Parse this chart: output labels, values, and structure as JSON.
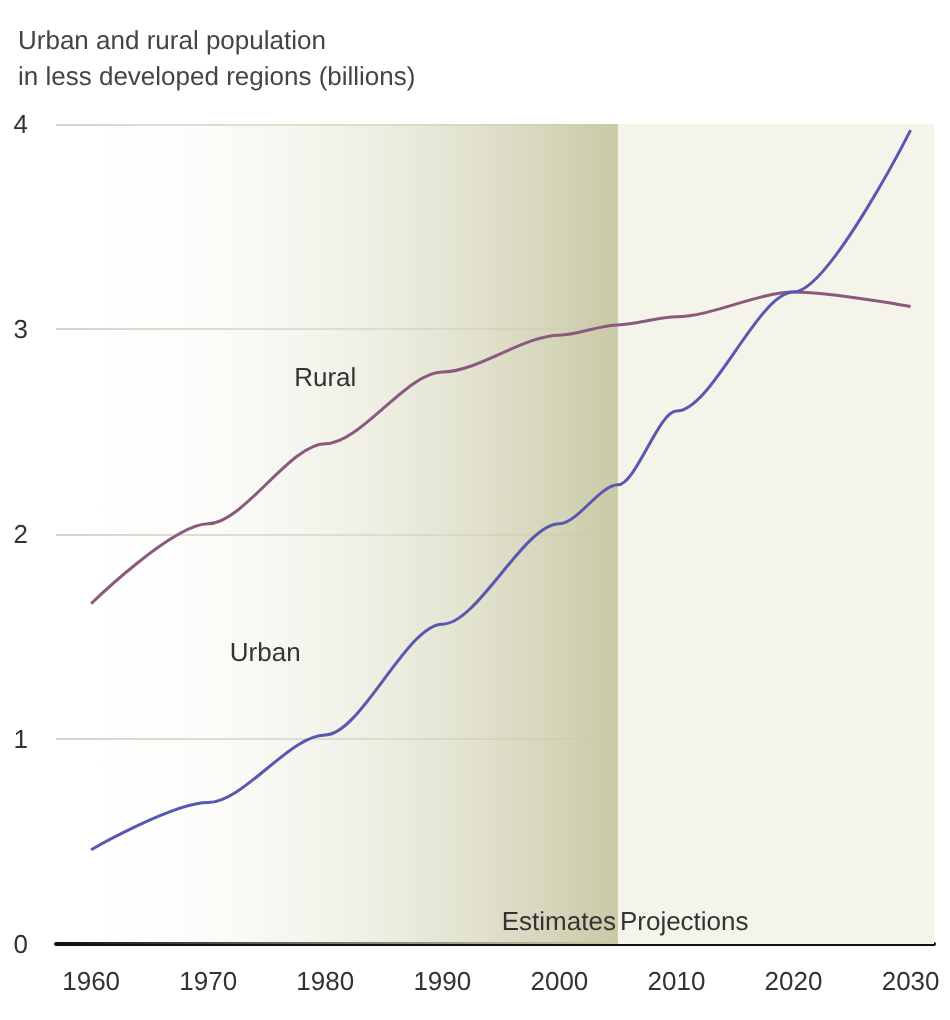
{
  "chart_data": {
    "type": "line",
    "title": "Urban and rural population\nin less developed regions (billions)",
    "x": [
      1960,
      1970,
      1980,
      1990,
      2000,
      2005,
      2010,
      2020,
      2030
    ],
    "series": [
      {
        "name": "Rural",
        "color": "#8a5a7e",
        "values": [
          1.66,
          2.05,
          2.44,
          2.79,
          2.97,
          3.02,
          3.06,
          3.18,
          3.11
        ]
      },
      {
        "name": "Urban",
        "color": "#5858b0",
        "values": [
          0.46,
          0.69,
          1.02,
          1.56,
          2.05,
          2.24,
          2.6,
          3.18,
          3.97
        ]
      }
    ],
    "xlim": [
      1957,
      2032
    ],
    "xticks": [
      1960,
      1970,
      1980,
      1990,
      2000,
      2010,
      2020,
      2030
    ],
    "ylim": [
      0,
      4
    ],
    "yticks": [
      0,
      1,
      2,
      3,
      4
    ],
    "bands": [
      {
        "axis": "x",
        "from": 1958,
        "to": 2005,
        "label": "Estimates",
        "color": "#c9c9a6"
      },
      {
        "axis": "x",
        "from": 2005,
        "to": 2032,
        "label": "Projections",
        "color": "#f4f4ea"
      }
    ],
    "grid": "y",
    "legend": false,
    "marker": "none",
    "line_style": "solid"
  }
}
